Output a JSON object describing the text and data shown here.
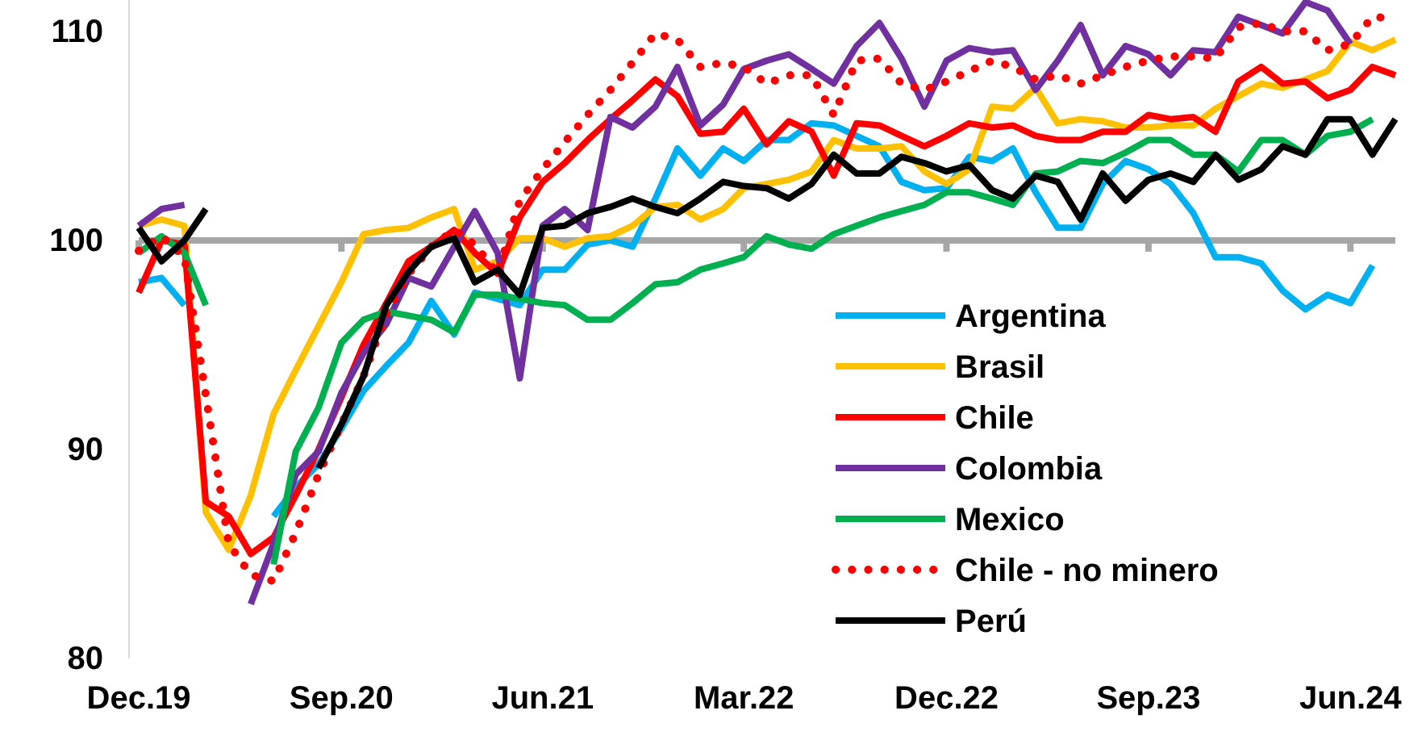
{
  "chart_data": {
    "type": "line",
    "x": [
      "2019-12",
      "2020-01",
      "2020-02",
      "2020-03",
      "2020-04",
      "2020-05",
      "2020-06",
      "2020-07",
      "2020-08",
      "2020-09",
      "2020-10",
      "2020-11",
      "2020-12",
      "2021-01",
      "2021-02",
      "2021-03",
      "2021-04",
      "2021-05",
      "2021-06",
      "2021-07",
      "2021-08",
      "2021-09",
      "2021-10",
      "2021-11",
      "2021-12",
      "2022-01",
      "2022-02",
      "2022-03",
      "2022-04",
      "2022-05",
      "2022-06",
      "2022-07",
      "2022-08",
      "2022-09",
      "2022-10",
      "2022-11",
      "2022-12",
      "2023-01",
      "2023-02",
      "2023-03",
      "2023-04",
      "2023-05",
      "2023-06",
      "2023-07",
      "2023-08",
      "2023-09",
      "2023-10",
      "2023-11",
      "2023-12",
      "2024-01",
      "2024-02",
      "2024-03",
      "2024-04",
      "2024-05",
      "2024-06",
      "2024-07",
      "2024-08"
    ],
    "xlim": [
      "2019-12",
      "2024-08"
    ],
    "xticks": [
      {
        "value": "2019-12",
        "label": "Dec.19"
      },
      {
        "value": "2020-09",
        "label": "Sep.20"
      },
      {
        "value": "2021-06",
        "label": "Jun.21"
      },
      {
        "value": "2022-03",
        "label": "Mar.22"
      },
      {
        "value": "2022-12",
        "label": "Dec.22"
      },
      {
        "value": "2023-09",
        "label": "Sep.23"
      },
      {
        "value": "2024-06",
        "label": "Jun.24"
      }
    ],
    "ylim": [
      80,
      111.5
    ],
    "yticks": [
      80,
      90,
      100,
      110
    ],
    "grid": false,
    "legend": "bottom right",
    "ref_lines": [
      {
        "axis": "y",
        "value": 100,
        "color": "#a6a6a6"
      }
    ],
    "series": [
      {
        "name": "Argentina",
        "color": "#00b0f0",
        "line_style": "solid",
        "values": [
          98.0,
          98.2,
          96.9,
          null,
          null,
          null,
          86.8,
          88.2,
          89.3,
          91.0,
          92.8,
          94.0,
          95.1,
          97.1,
          95.5,
          97.5,
          97.2,
          96.9,
          98.6,
          98.6,
          99.8,
          100.0,
          99.7,
          102.0,
          104.4,
          103.1,
          104.4,
          103.8,
          104.8,
          104.8,
          105.6,
          105.5,
          105.0,
          104.5,
          102.8,
          102.4,
          102.5,
          104.0,
          103.8,
          104.4,
          102.3,
          100.6,
          100.6,
          102.7,
          103.8,
          103.4,
          102.7,
          101.3,
          99.2,
          99.2,
          98.9,
          97.6,
          96.7,
          97.4,
          97.0,
          98.8,
          null
        ]
      },
      {
        "name": "Brasil",
        "color": "#ffc000",
        "line_style": "solid",
        "values": [
          100.7,
          101.0,
          100.7,
          87.0,
          85.2,
          87.8,
          91.7,
          93.8,
          95.9,
          98.0,
          100.3,
          100.5,
          100.6,
          101.1,
          101.5,
          98.6,
          99.0,
          100.1,
          100.1,
          99.7,
          100.1,
          100.2,
          100.7,
          101.6,
          101.7,
          101.0,
          101.5,
          102.5,
          102.7,
          102.9,
          103.3,
          104.8,
          104.4,
          104.4,
          104.5,
          103.3,
          102.7,
          103.4,
          106.4,
          106.3,
          107.3,
          105.6,
          105.8,
          105.7,
          105.4,
          105.4,
          105.5,
          105.5,
          106.3,
          106.9,
          107.5,
          107.3,
          107.7,
          108.1,
          109.5,
          109.1,
          109.6
        ]
      },
      {
        "name": "Chile",
        "color": "#ff0000",
        "line_style": "solid",
        "values": [
          97.5,
          100.0,
          99.8,
          87.5,
          86.8,
          85.0,
          85.8,
          87.8,
          90.0,
          92.5,
          95.0,
          97.0,
          99.0,
          99.7,
          100.5,
          99.4,
          98.4,
          101.1,
          102.8,
          103.7,
          104.8,
          105.8,
          106.7,
          107.7,
          106.9,
          105.1,
          105.2,
          106.3,
          104.6,
          105.7,
          105.2,
          103.1,
          105.6,
          105.5,
          105.0,
          104.5,
          105.0,
          105.6,
          105.4,
          105.5,
          105.0,
          104.8,
          104.8,
          105.2,
          105.2,
          106.0,
          105.8,
          105.9,
          105.2,
          107.6,
          108.3,
          107.5,
          107.6,
          106.8,
          107.2,
          108.3,
          107.9
        ]
      },
      {
        "name": "Colombia",
        "color": "#7030a0",
        "line_style": "solid",
        "values": [
          100.7,
          101.5,
          101.7,
          null,
          null,
          82.6,
          85.5,
          88.8,
          89.9,
          92.7,
          94.6,
          96.0,
          98.2,
          97.8,
          99.7,
          101.4,
          99.4,
          93.4,
          100.7,
          101.5,
          100.5,
          105.9,
          105.4,
          106.4,
          108.3,
          105.5,
          106.5,
          108.2,
          108.6,
          108.9,
          108.2,
          107.5,
          109.3,
          110.4,
          108.7,
          106.4,
          108.6,
          109.2,
          109.0,
          109.1,
          107.2,
          108.6,
          110.3,
          107.9,
          109.3,
          108.9,
          107.9,
          109.1,
          109.0,
          110.7,
          110.3,
          109.9,
          111.4,
          111.0,
          109.4,
          null,
          null
        ]
      },
      {
        "name": "Mexico",
        "color": "#00b050",
        "line_style": "solid",
        "values": [
          99.4,
          100.2,
          99.4,
          96.9,
          null,
          null,
          84.5,
          89.9,
          92.0,
          95.1,
          96.2,
          96.6,
          96.4,
          96.2,
          95.6,
          97.4,
          97.4,
          97.2,
          97.0,
          96.9,
          96.2,
          96.2,
          97.0,
          97.9,
          98.0,
          98.6,
          98.9,
          99.2,
          100.2,
          99.8,
          99.6,
          100.3,
          100.7,
          101.1,
          101.4,
          101.7,
          102.3,
          102.3,
          102.0,
          101.7,
          103.2,
          103.3,
          103.8,
          103.7,
          104.2,
          104.8,
          104.8,
          104.1,
          104.1,
          103.3,
          104.8,
          104.8,
          104.1,
          105.0,
          105.2,
          105.8,
          null
        ]
      },
      {
        "name": "Chile - no minero",
        "color": "#ff0000",
        "line_style": "dotted",
        "values": [
          99.5,
          100.2,
          99.2,
          92.6,
          85.5,
          84.0,
          83.7,
          86.0,
          88.8,
          91.2,
          93.5,
          96.5,
          98.4,
          99.7,
          100.5,
          99.8,
          98.4,
          101.9,
          103.4,
          104.7,
          106.0,
          107.2,
          108.5,
          109.9,
          109.6,
          108.3,
          108.5,
          108.3,
          107.5,
          107.9,
          107.9,
          106.0,
          108.6,
          108.7,
          107.5,
          107.2,
          107.6,
          108.1,
          108.6,
          108.3,
          107.7,
          107.9,
          107.5,
          107.9,
          108.3,
          108.6,
          108.8,
          108.8,
          108.7,
          110.2,
          110.4,
          110.0,
          110.0,
          109.1,
          109.4,
          110.7,
          110.6
        ]
      },
      {
        "name": "Perú",
        "color": "#000000",
        "line_style": "solid",
        "values": [
          100.6,
          99.0,
          100.0,
          101.5,
          null,
          null,
          null,
          null,
          89.1,
          91.2,
          93.5,
          96.9,
          98.5,
          99.7,
          100.1,
          98.0,
          98.6,
          97.4,
          100.6,
          100.7,
          101.3,
          101.6,
          102.0,
          101.6,
          101.3,
          102.0,
          102.8,
          102.6,
          102.5,
          102.0,
          102.7,
          104.1,
          103.2,
          103.2,
          104.0,
          103.7,
          103.3,
          103.6,
          102.4,
          102.0,
          103.1,
          102.8,
          101.0,
          103.2,
          101.9,
          102.9,
          103.2,
          102.8,
          104.1,
          102.9,
          103.4,
          104.5,
          104.1,
          105.8,
          105.8,
          104.1,
          105.8
        ]
      }
    ]
  }
}
